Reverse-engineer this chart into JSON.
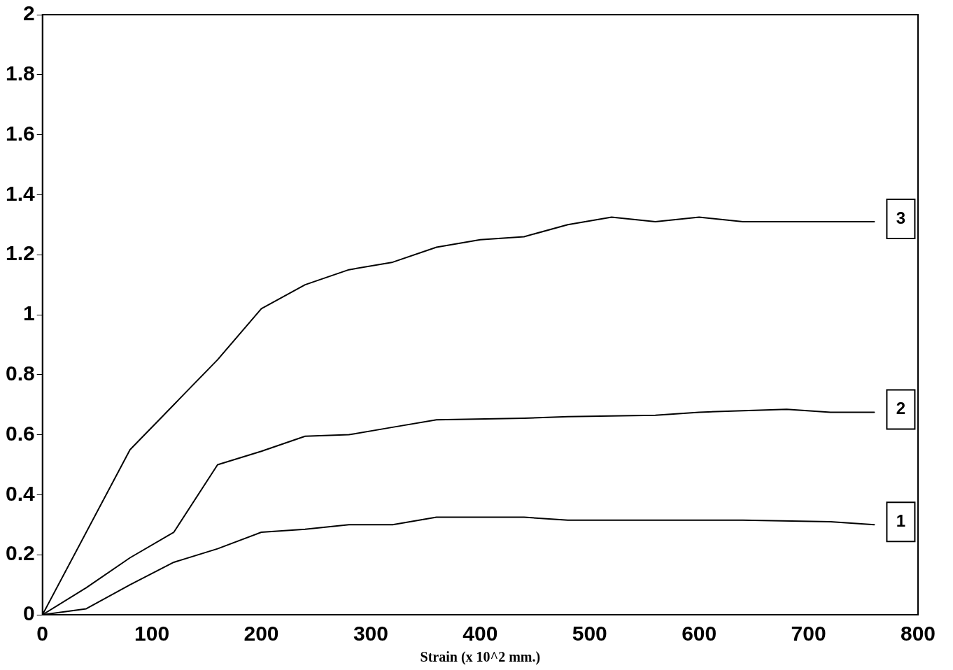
{
  "chart_data": {
    "type": "line",
    "xlabel": "Strain (x 10^2 mm.)",
    "xlim": [
      0,
      800
    ],
    "xticks": [
      0,
      100,
      200,
      300,
      400,
      500,
      600,
      700,
      800
    ],
    "ylim": [
      0,
      2
    ],
    "yticks": [
      0,
      0.2,
      0.4,
      0.6,
      0.8,
      1,
      1.2,
      1.4,
      1.6,
      1.8,
      2
    ],
    "grid": false,
    "legend": false,
    "marker": "none",
    "line_style": "solid",
    "series": [
      {
        "name": "1",
        "color": "#000000",
        "x": [
          0,
          40,
          80,
          120,
          160,
          200,
          240,
          280,
          320,
          360,
          400,
          440,
          480,
          560,
          640,
          720,
          760
        ],
        "values": [
          0,
          0.02,
          0.1,
          0.175,
          0.22,
          0.275,
          0.285,
          0.3,
          0.3,
          0.325,
          0.325,
          0.325,
          0.315,
          0.315,
          0.315,
          0.31,
          0.3
        ]
      },
      {
        "name": "2",
        "color": "#000000",
        "x": [
          0,
          40,
          80,
          120,
          160,
          200,
          240,
          280,
          320,
          360,
          440,
          480,
          560,
          600,
          680,
          720,
          760
        ],
        "values": [
          0,
          0.09,
          0.19,
          0.275,
          0.5,
          0.545,
          0.595,
          0.6,
          0.625,
          0.65,
          0.655,
          0.66,
          0.665,
          0.675,
          0.685,
          0.675,
          0.675
        ]
      },
      {
        "name": "3",
        "color": "#000000",
        "x": [
          0,
          80,
          120,
          160,
          200,
          240,
          280,
          320,
          360,
          400,
          440,
          480,
          520,
          560,
          600,
          640,
          760
        ],
        "values": [
          0,
          0.55,
          0.7,
          0.85,
          1.02,
          1.1,
          1.15,
          1.175,
          1.225,
          1.25,
          1.26,
          1.3,
          1.325,
          1.31,
          1.325,
          1.31,
          1.31
        ]
      }
    ]
  }
}
